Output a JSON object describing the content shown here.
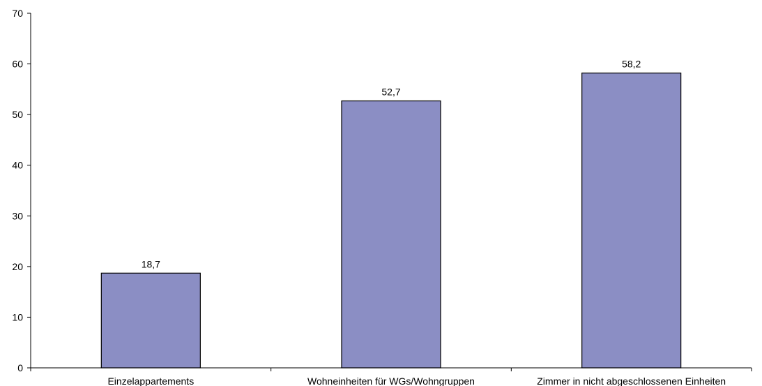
{
  "colors": {
    "bar_fill": "#8B8EC4",
    "bar_stroke": "#000000",
    "axis": "#000000",
    "background": "#ffffff"
  },
  "chart_data": {
    "type": "bar",
    "categories": [
      "Einzelappartements",
      "Wohneinheiten für WGs/Wohngruppen",
      "Zimmer in nicht abgeschlossenen Einheiten"
    ],
    "values": [
      18.7,
      52.7,
      58.2
    ],
    "value_labels": [
      "18,7",
      "52,7",
      "58,2"
    ],
    "ylim": [
      0,
      70
    ],
    "yticks": [
      0,
      10,
      20,
      30,
      40,
      50,
      60,
      70
    ],
    "ytick_labels": [
      "0",
      "10",
      "20",
      "30",
      "40",
      "50",
      "60",
      "70"
    ],
    "grid": false,
    "title": "",
    "xlabel": "",
    "ylabel": ""
  }
}
